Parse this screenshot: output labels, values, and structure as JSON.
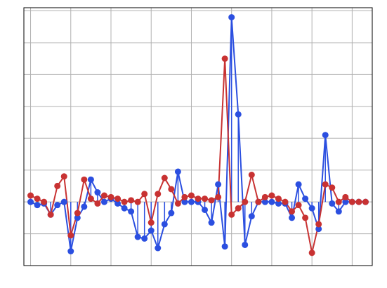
{
  "chart_data": {
    "type": "line",
    "title": "",
    "xlabel": "",
    "ylabel": "",
    "xlim": [
      -1,
      51
    ],
    "ylim": [
      -2,
      6.1
    ],
    "grid": true,
    "legend": "none",
    "x": [
      0,
      1,
      2,
      3,
      4,
      5,
      6,
      7,
      8,
      9,
      10,
      11,
      12,
      13,
      14,
      15,
      16,
      17,
      18,
      19,
      20,
      21,
      22,
      23,
      24,
      25,
      26,
      27,
      28,
      29,
      30,
      31,
      32,
      33,
      34,
      35,
      36,
      37,
      38,
      39,
      40,
      41,
      42,
      43,
      44,
      45,
      46,
      47,
      48,
      49,
      50
    ],
    "series": [
      {
        "color": "#2b4fe0",
        "stems": true,
        "values": [
          0.0,
          -0.1,
          -0.05,
          -0.4,
          -0.1,
          0.0,
          -1.55,
          -0.5,
          -0.15,
          0.7,
          0.3,
          0.0,
          0.1,
          -0.05,
          -0.2,
          -0.3,
          -1.1,
          -1.15,
          -0.9,
          -1.45,
          -0.7,
          -0.35,
          0.95,
          0.0,
          0.0,
          0.0,
          -0.25,
          -0.65,
          0.55,
          -1.4,
          5.8,
          2.75,
          -1.35,
          -0.45,
          0.0,
          0.0,
          0.0,
          -0.05,
          -0.05,
          -0.5,
          0.55,
          0.1,
          -0.2,
          -0.85,
          2.1,
          -0.05,
          -0.3,
          0.0,
          0.0,
          0.0,
          0.0
        ]
      },
      {
        "color": "#c83232",
        "stems": false,
        "values": [
          0.2,
          0.1,
          0.0,
          -0.4,
          0.5,
          0.8,
          -1.05,
          -0.35,
          0.7,
          0.1,
          -0.05,
          0.2,
          0.15,
          0.1,
          0.0,
          0.05,
          0.0,
          0.25,
          -0.65,
          0.25,
          0.75,
          0.4,
          -0.05,
          0.15,
          0.2,
          0.1,
          0.1,
          0.05,
          0.15,
          4.5,
          -0.4,
          -0.2,
          0.0,
          0.85,
          0.0,
          0.15,
          0.2,
          0.1,
          0.0,
          -0.3,
          -0.1,
          -0.5,
          -1.6,
          -0.7,
          0.55,
          0.45,
          0.0,
          0.15,
          0.0,
          0.0,
          0.0
        ]
      }
    ]
  }
}
